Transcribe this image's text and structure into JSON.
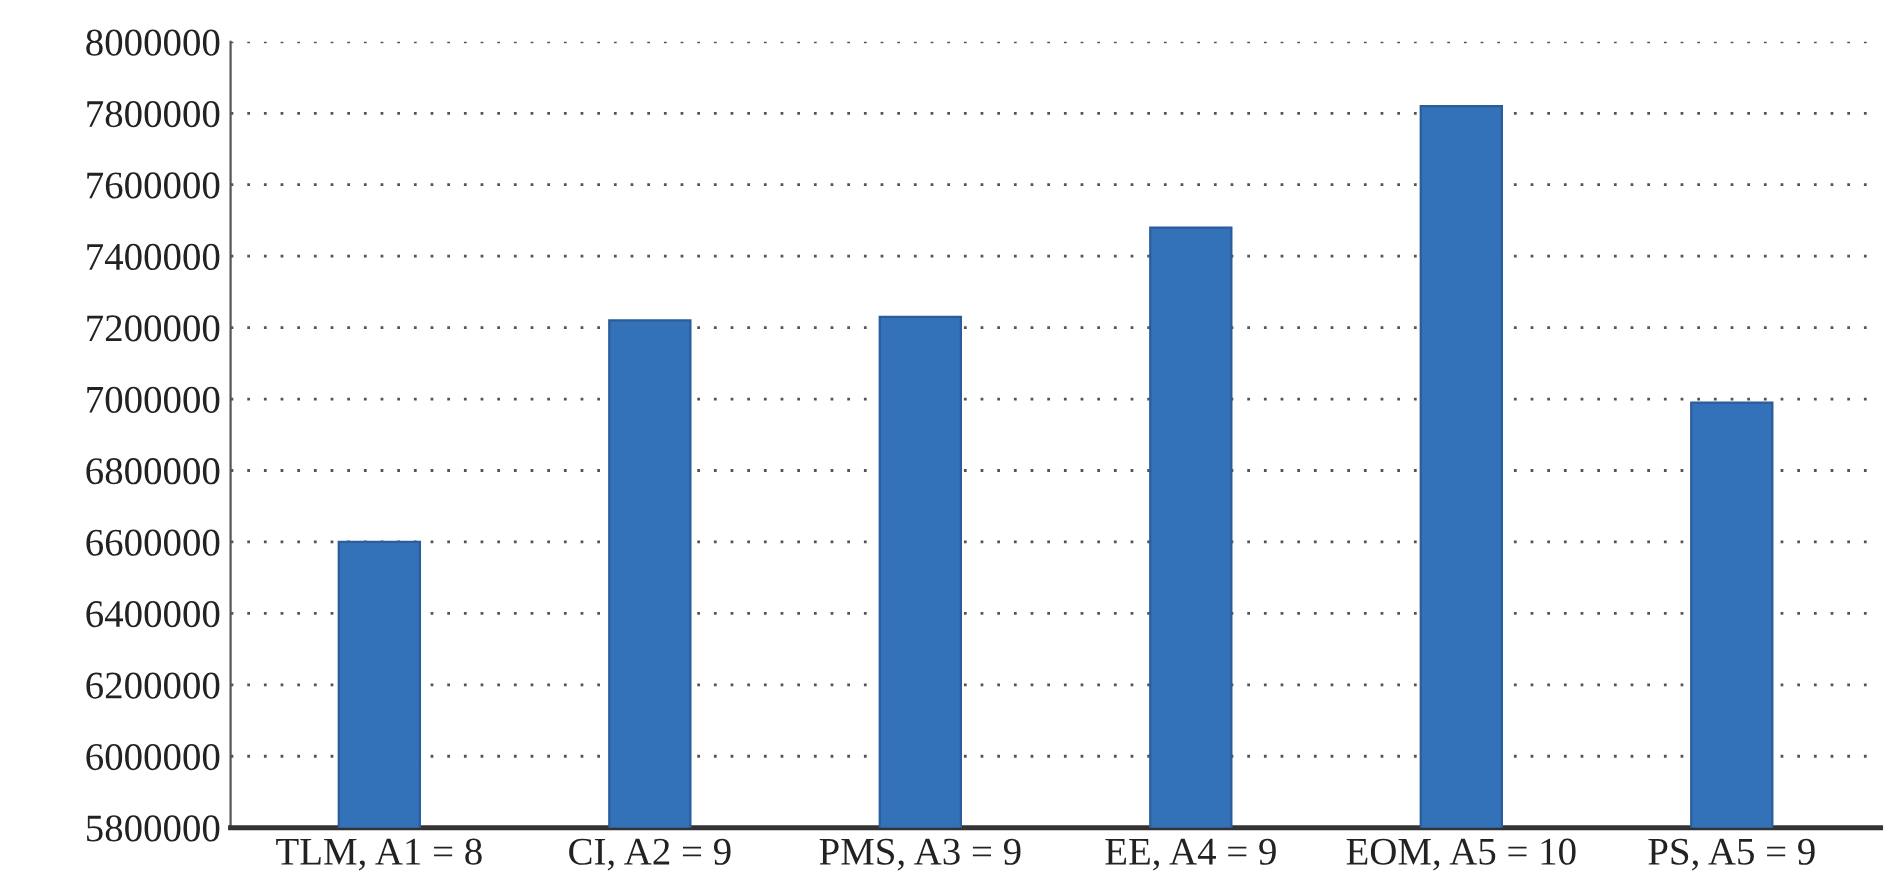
{
  "chart_data": {
    "type": "bar",
    "categories": [
      "TLM, A1 = 8",
      "CI, A2 = 9",
      "PMS, A3 = 9",
      "EE, A4 = 9",
      "EOM, A5 = 10",
      "PS, A5 = 9"
    ],
    "values": [
      6600000,
      7220000,
      7230000,
      7480000,
      7820000,
      6990000
    ],
    "color": "#3371b8",
    "ylim": [
      5800000,
      8000000
    ],
    "yticks": [
      5800000,
      6000000,
      6200000,
      6400000,
      6600000,
      6800000,
      7000000,
      7200000,
      7400000,
      7600000,
      7800000,
      8000000
    ],
    "grid": "y",
    "line_style": "dotted"
  }
}
